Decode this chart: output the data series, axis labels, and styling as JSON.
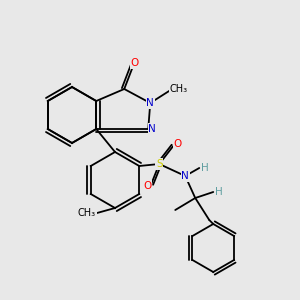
{
  "bg_color": "#e8e8e8",
  "bond_color": "#000000",
  "bond_lw": 1.3,
  "atom_colors": {
    "N": "#0000cc",
    "O": "#ff0000",
    "S": "#cccc00",
    "H": "#5f9ea0",
    "C": "#000000"
  },
  "font_size": 7.5
}
